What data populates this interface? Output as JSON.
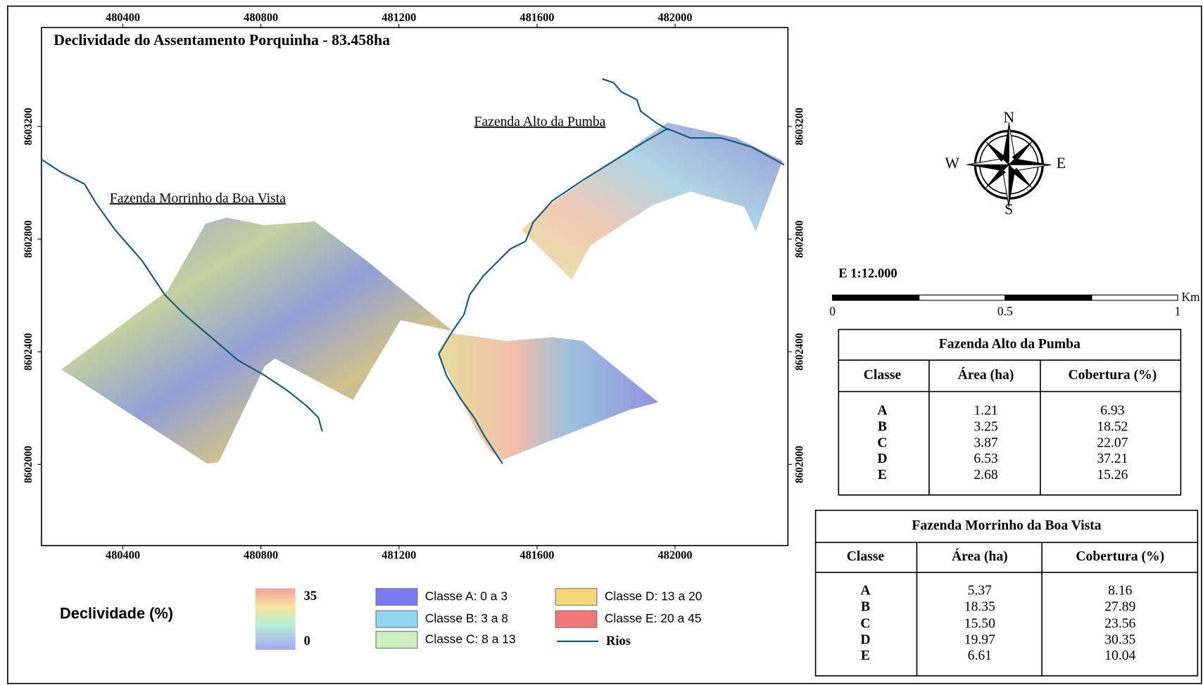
{
  "title": "Declividade do Assentamento Porquinha - 83.458ha",
  "map": {
    "xlim": [
      480164,
      482327
    ],
    "ylim": [
      8601712,
      8603551
    ],
    "xticks": [
      480400,
      480800,
      481200,
      481600,
      482000
    ],
    "yticks": [
      8602000,
      8602400,
      8602800,
      8603200
    ]
  },
  "labels": [
    "Fazenda Alto da Pumba",
    "Fazenda Morrinho da Boa Vista"
  ],
  "compass": [
    "N",
    "S",
    "W",
    "E"
  ],
  "legend": {
    "title": "Declividade (%)",
    "ramp_max": 35,
    "ramp_min": 0,
    "classes": [
      {
        "label": "Classe A: 0 a 3",
        "color": "#7b7bef"
      },
      {
        "label": "Classe B: 3 a 8",
        "color": "#8fd8f0"
      },
      {
        "label": "Classe C: 8 a 13",
        "color": "#cdf0c0"
      },
      {
        "label": "Classe D: 13 a 20",
        "color": "#f5d77a"
      },
      {
        "label": "Classe E: 20 a 45",
        "color": "#f07878"
      }
    ],
    "rivers": "Rios",
    "rivers_color": "#1b5a7a"
  },
  "scale": {
    "ratio": "E 1:12.000",
    "ticks": [
      "0",
      "0.5",
      "1"
    ],
    "unit": "Km"
  },
  "tables": [
    {
      "title": "Fazenda Alto da Pumba",
      "columns": [
        "Classe",
        "Área (ha)",
        "Cobertura (%)"
      ],
      "rows": [
        [
          "A",
          "1.21",
          "6.93"
        ],
        [
          "B",
          "3.25",
          "18.52"
        ],
        [
          "C",
          "3.87",
          "22.07"
        ],
        [
          "D",
          "6.53",
          "37.21"
        ],
        [
          "E",
          "2.68",
          "15.26"
        ]
      ]
    },
    {
      "title": "Fazenda Morrinho da Boa Vista",
      "columns": [
        "Classe",
        "Área (ha)",
        "Cobertura (%)"
      ],
      "rows": [
        [
          "A",
          "5.37",
          "8.16"
        ],
        [
          "B",
          "18.35",
          "27.89"
        ],
        [
          "C",
          "15.50",
          "23.56"
        ],
        [
          "D",
          "19.97",
          "30.35"
        ],
        [
          "E",
          "6.61",
          "10.04"
        ]
      ]
    }
  ]
}
